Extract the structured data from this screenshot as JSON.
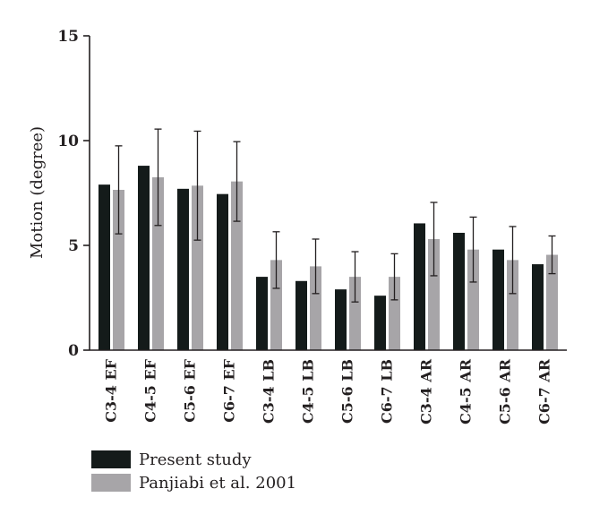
{
  "chart_data": {
    "type": "bar",
    "ylabel": "Motion (degree)",
    "ylim": [
      0,
      15
    ],
    "yticks": [
      0,
      5,
      10,
      15
    ],
    "grid": false,
    "legend_position": "bottom-left",
    "categories": [
      "C3-4 EF",
      "C4-5 EF",
      "C5-6 EF",
      "C6-7 EF",
      "C3-4 LB",
      "C4-5 LB",
      "C5-6 LB",
      "C6-7 LB",
      "C3-4 AR",
      "C4-5 AR",
      "C5-6 AR",
      "C6-7 AR"
    ],
    "series": [
      {
        "name": "Present study",
        "color": "#141b1a",
        "values": [
          7.9,
          8.8,
          7.7,
          7.45,
          3.5,
          3.3,
          2.9,
          2.6,
          6.05,
          5.6,
          4.8,
          4.1
        ]
      },
      {
        "name": "Panjiabi et al. 2001",
        "color": "#a7a5a8",
        "values": [
          7.65,
          8.25,
          7.85,
          8.05,
          4.3,
          4.0,
          3.5,
          3.5,
          5.3,
          4.8,
          4.3,
          4.55
        ],
        "error": [
          2.1,
          2.3,
          2.6,
          1.9,
          1.35,
          1.3,
          1.2,
          1.1,
          1.75,
          1.55,
          1.6,
          0.9
        ]
      }
    ]
  }
}
